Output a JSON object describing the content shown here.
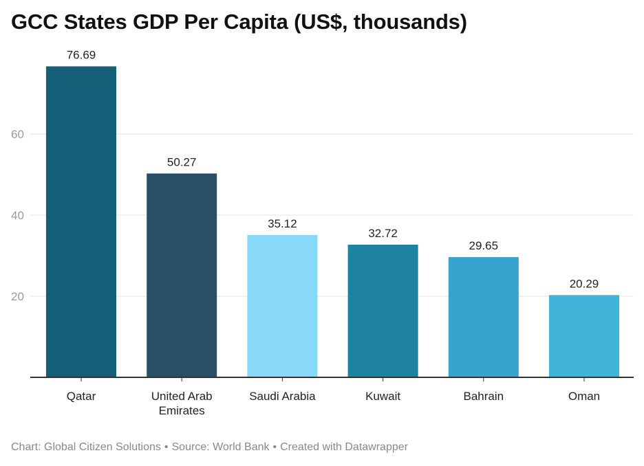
{
  "chart_data": {
    "type": "bar",
    "title": "GCC States GDP Per Capita (US$, thousands)",
    "categories": [
      [
        "Qatar"
      ],
      [
        "United Arab",
        "Emirates"
      ],
      [
        "Saudi Arabia"
      ],
      [
        "Kuwait"
      ],
      [
        "Bahrain"
      ],
      [
        "Oman"
      ]
    ],
    "values": [
      76.69,
      50.27,
      35.12,
      32.72,
      29.65,
      20.29
    ],
    "value_labels": [
      "76.69",
      "50.27",
      "35.12",
      "32.72",
      "29.65",
      "20.29"
    ],
    "colors": [
      "#155e78",
      "#284e68",
      "#88d9f7",
      "#1e83a1",
      "#37a3cf",
      "#40b5d9"
    ],
    "yticks": [
      20,
      40,
      60
    ],
    "ylim": [
      0,
      80
    ],
    "xlabel": "",
    "ylabel": "",
    "grid": true
  },
  "footer": {
    "chart_credit": "Chart: Global Citizen Solutions",
    "source": "Source: World Bank",
    "tool": "Created with Datawrapper",
    "separator": "•"
  }
}
